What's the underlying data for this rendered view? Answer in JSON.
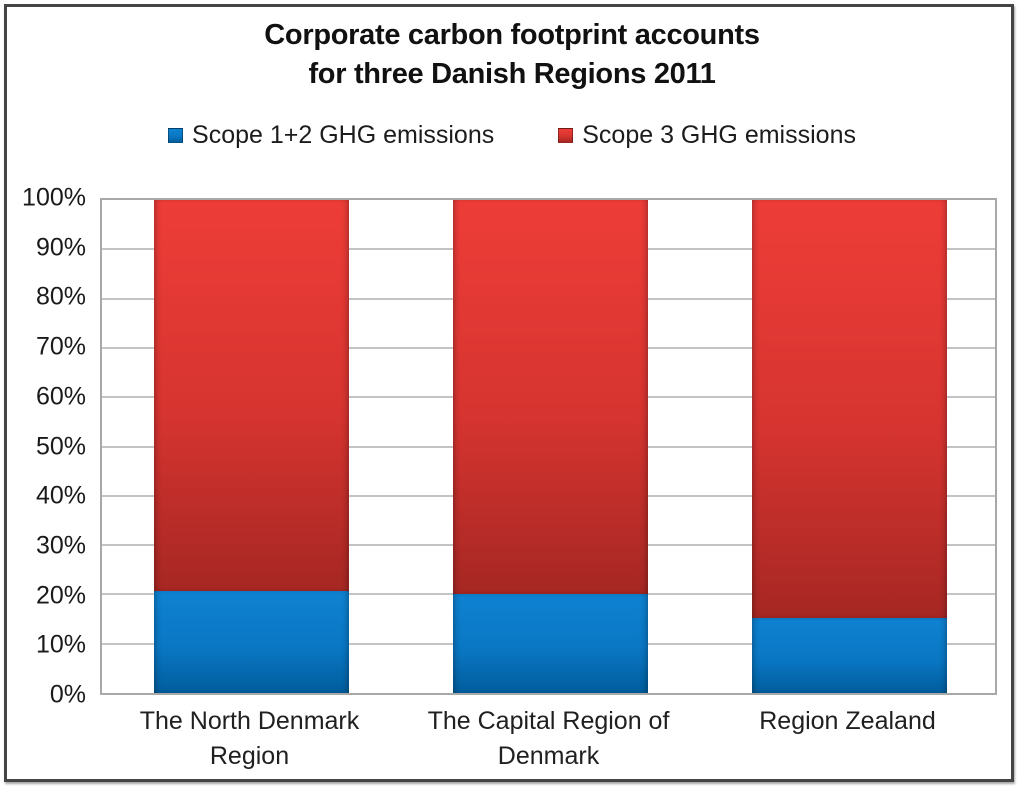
{
  "title": {
    "line1": "Corporate carbon footprint accounts",
    "line2": "for three Danish Regions 2011"
  },
  "chart_data": {
    "type": "bar",
    "stacked": true,
    "percent_stacked": true,
    "title": "Corporate carbon footprint accounts for three Danish Regions 2011",
    "categories": [
      "The North Denmark Region",
      "The Capital Region of Denmark",
      "Region Zealand"
    ],
    "series": [
      {
        "name": "Scope 1+2 GHG emissions",
        "values": [
          20.7,
          20.1,
          15.3
        ],
        "color": "#1b79c0",
        "gradient": [
          "#0e82d1",
          "#0a77c4",
          "#015d9d"
        ]
      },
      {
        "name": "Scope 3 GHG emissions",
        "values": [
          79.3,
          79.9,
          84.7
        ],
        "color": "#cf3430",
        "gradient": [
          "#ee3d38",
          "#d63430",
          "#a62723"
        ]
      }
    ],
    "xlabel": "",
    "ylabel": "",
    "ylim": [
      0,
      100
    ],
    "ytick_step": 10,
    "ytick_labels": [
      "0%",
      "10%",
      "20%",
      "30%",
      "40%",
      "50%",
      "60%",
      "70%",
      "80%",
      "90%",
      "100%"
    ],
    "grid": true,
    "legend_position": "top"
  },
  "colors": {
    "gridline": "#c4c4c4",
    "plot_border": "#a8a8a8",
    "frame_border": "#454545",
    "text": "#1a1a1a",
    "background": "#ffffff"
  }
}
